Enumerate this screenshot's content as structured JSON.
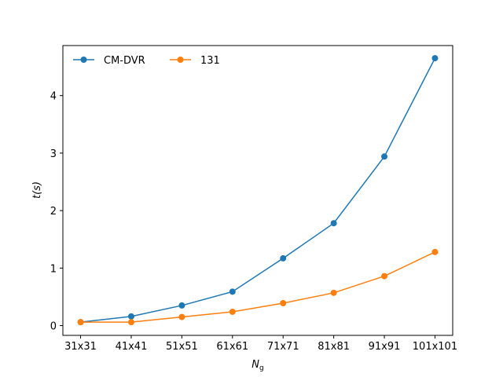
{
  "chart_data": {
    "type": "line",
    "categories": [
      "31x31",
      "41x41",
      "51x51",
      "61x61",
      "71x71",
      "81x81",
      "91x91",
      "101x101"
    ],
    "series": [
      {
        "name": "CM-DVR",
        "color": "#1f77b4",
        "values": [
          0.06,
          0.16,
          0.35,
          0.59,
          1.17,
          1.78,
          2.94,
          4.65
        ]
      },
      {
        "name": "131",
        "color": "#ff7f0e",
        "values": [
          0.06,
          0.06,
          0.15,
          0.24,
          0.39,
          0.57,
          0.86,
          1.28
        ]
      }
    ],
    "xlabel": {
      "base": "N",
      "sub": "g"
    },
    "ylabel": {
      "base": "t",
      "arg": "(s)"
    },
    "yticks": [
      0,
      1,
      2,
      3,
      4
    ],
    "ylim": [
      -0.17,
      4.87
    ],
    "grid": false,
    "legend": "top-left",
    "legend_layout": "horizontal"
  }
}
